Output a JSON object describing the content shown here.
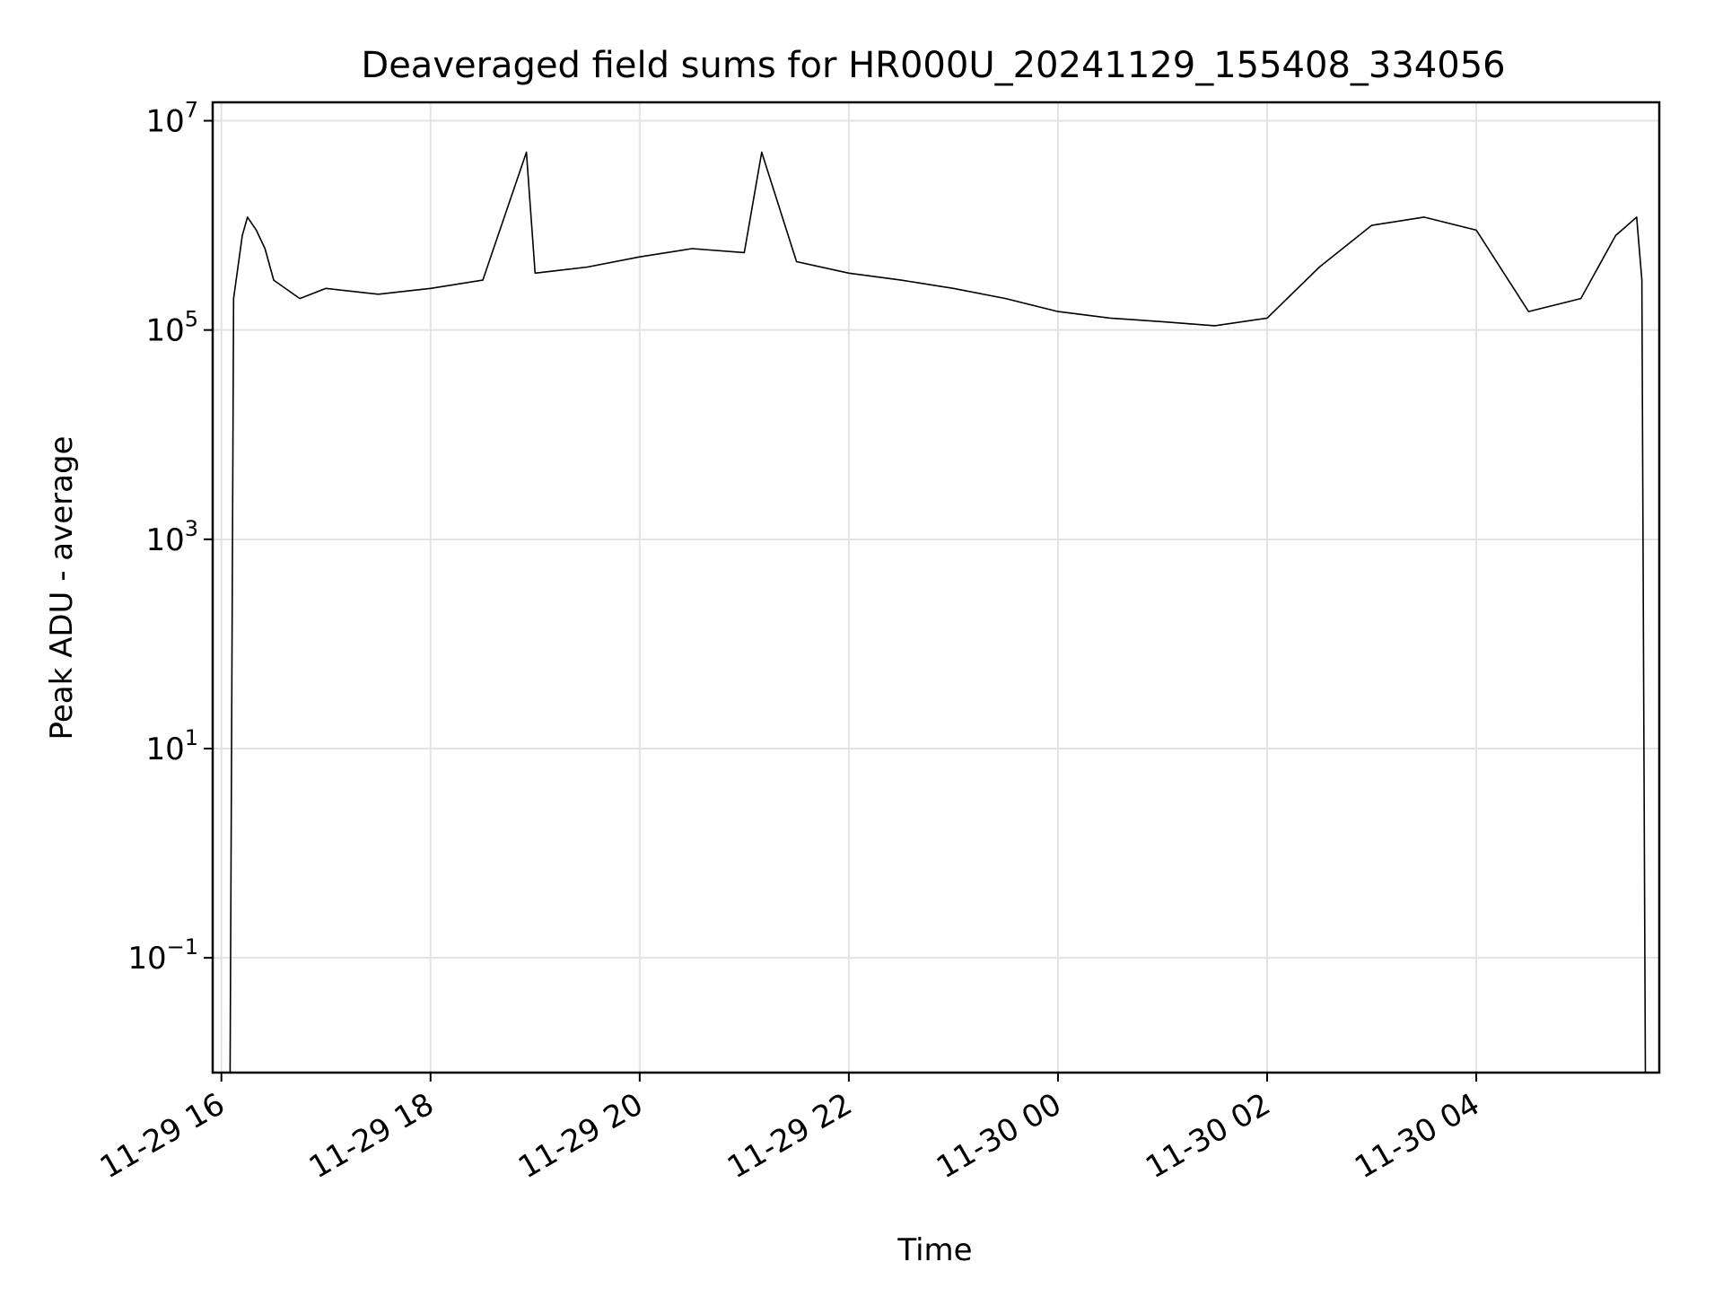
{
  "chart_data": {
    "type": "line",
    "title": "Deaveraged field sums for HR000U_20241129_155408_334056",
    "xlabel": "Time",
    "ylabel": "Peak ADU - average",
    "yscale": "log",
    "ylim": [
      0.008,
      15000000
    ],
    "xlim": [
      "11-29 15:55",
      "11-30 05:45"
    ],
    "grid": true,
    "x_ticks": [
      {
        "value": "11-29 16:00",
        "label": "11-29 16"
      },
      {
        "value": "11-29 18:00",
        "label": "11-29 18"
      },
      {
        "value": "11-29 20:00",
        "label": "11-29 20"
      },
      {
        "value": "11-29 22:00",
        "label": "11-29 22"
      },
      {
        "value": "11-30 00:00",
        "label": "11-30 00"
      },
      {
        "value": "11-30 02:00",
        "label": "11-30 02"
      },
      {
        "value": "11-30 04:00",
        "label": "11-30 04"
      }
    ],
    "y_ticks": [
      {
        "value": 0.1,
        "base": "10",
        "exp": "−1"
      },
      {
        "value": 10,
        "base": "10",
        "exp": "1"
      },
      {
        "value": 1000,
        "base": "10",
        "exp": "3"
      },
      {
        "value": 100000,
        "base": "10",
        "exp": "5"
      },
      {
        "value": 10000000,
        "base": "10",
        "exp": "7"
      }
    ],
    "series": [
      {
        "color": "#000000",
        "points": [
          [
            "11-29 16:05",
            0.008
          ],
          [
            "11-29 16:07",
            200000
          ],
          [
            "11-29 16:12",
            800000
          ],
          [
            "11-29 16:15",
            1200000
          ],
          [
            "11-29 16:20",
            900000
          ],
          [
            "11-29 16:25",
            600000
          ],
          [
            "11-29 16:30",
            300000
          ],
          [
            "11-29 16:45",
            200000
          ],
          [
            "11-29 17:00",
            250000
          ],
          [
            "11-29 17:30",
            220000
          ],
          [
            "11-29 18:00",
            250000
          ],
          [
            "11-29 18:30",
            300000
          ],
          [
            "11-29 18:55",
            5000000
          ],
          [
            "11-29 19:00",
            350000
          ],
          [
            "11-29 19:30",
            400000
          ],
          [
            "11-29 20:00",
            500000
          ],
          [
            "11-29 20:30",
            600000
          ],
          [
            "11-29 21:00",
            550000
          ],
          [
            "11-29 21:10",
            5000000
          ],
          [
            "11-29 21:30",
            450000
          ],
          [
            "11-29 22:00",
            350000
          ],
          [
            "11-29 22:30",
            300000
          ],
          [
            "11-29 23:00",
            250000
          ],
          [
            "11-29 23:30",
            200000
          ],
          [
            "11-30 00:00",
            150000
          ],
          [
            "11-30 00:30",
            130000
          ],
          [
            "11-30 01:00",
            120000
          ],
          [
            "11-30 01:30",
            110000
          ],
          [
            "11-30 02:00",
            130000
          ],
          [
            "11-30 02:30",
            400000
          ],
          [
            "11-30 03:00",
            1000000
          ],
          [
            "11-30 03:30",
            1200000
          ],
          [
            "11-30 04:00",
            900000
          ],
          [
            "11-30 04:30",
            150000
          ],
          [
            "11-30 05:00",
            200000
          ],
          [
            "11-30 05:20",
            800000
          ],
          [
            "11-30 05:32",
            1200000
          ],
          [
            "11-30 05:35",
            300000
          ],
          [
            "11-30 05:37",
            0.008
          ]
        ]
      }
    ]
  }
}
